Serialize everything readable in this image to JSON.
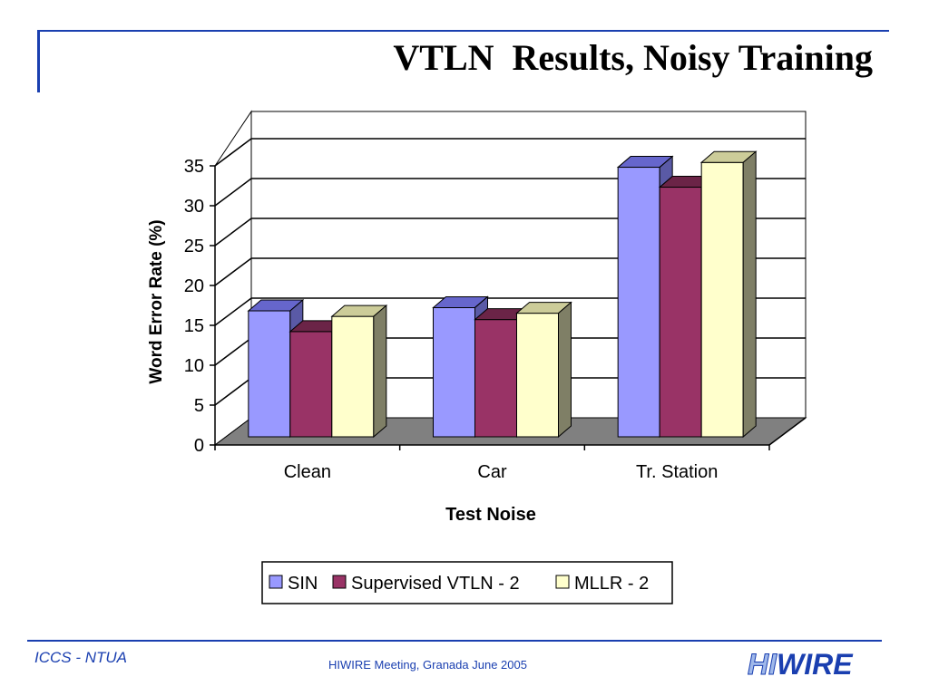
{
  "slide": {
    "title": "VTLN  Results, Noisy Training",
    "footer_left": "ICCS - NTUA",
    "footer_center": "HIWIRE Meeting, Granada June 2005",
    "logo_parts": [
      "HI",
      "WI",
      "RE"
    ]
  },
  "colors": {
    "accent": "#1a3fb0",
    "floor": "#808080"
  },
  "chart_data": {
    "type": "bar",
    "categories": [
      "Clean",
      "Car",
      "Tr. Station"
    ],
    "series": [
      {
        "name": "SIN",
        "values": [
          15.8,
          16.2,
          33.8
        ],
        "color": "#9999ff",
        "side": "#5a5aa6",
        "top": "#6666cc"
      },
      {
        "name": "Supervised VTLN - 2",
        "values": [
          13.2,
          14.7,
          31.3
        ],
        "color": "#993366",
        "side": "#5f1f3f",
        "top": "#6b2447"
      },
      {
        "name": "MLLR - 2",
        "values": [
          15.1,
          15.5,
          34.4
        ],
        "color": "#ffffcc",
        "side": "#7f7f66",
        "top": "#cccc99"
      }
    ],
    "xlabel": "Test Noise",
    "ylabel": "Word Error Rate (%)",
    "ylim": [
      0,
      35
    ],
    "yticks": [
      "0",
      "5",
      "10",
      "15",
      "20",
      "25",
      "30",
      "35"
    ],
    "grid": true,
    "legend_position": "bottom"
  }
}
